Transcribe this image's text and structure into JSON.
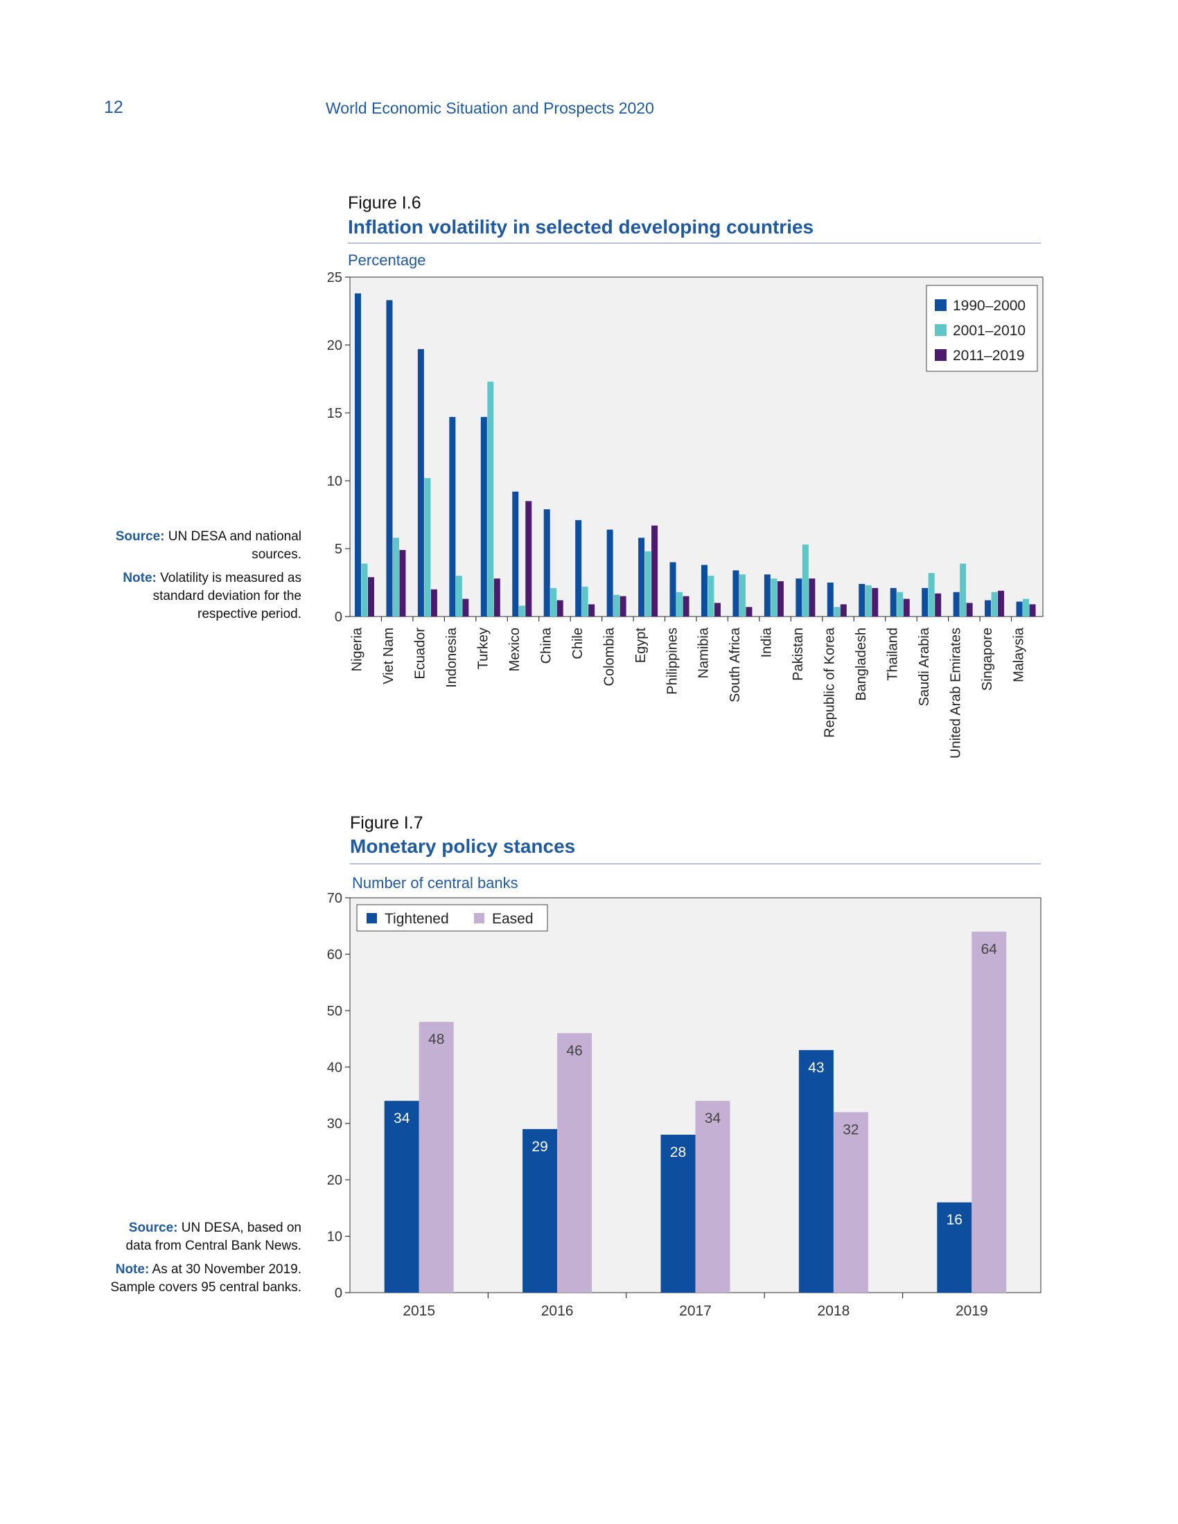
{
  "header": {
    "page_number": "12",
    "running_title": "World Economic Situation and Prospects 2020"
  },
  "figure_6": {
    "label": "Figure I.6",
    "title": "Inflation volatility in selected developing countries",
    "unit": "Percentage",
    "source_label": "Source:",
    "source_text": "UN DESA and national sources.",
    "note_label": "Note:",
    "note_text": "Volatility is measured as standard deviation for the respective period."
  },
  "figure_7": {
    "label": "Figure I.7",
    "title": "Monetary policy stances",
    "unit": "Number of central banks",
    "source_label": "Source:",
    "source_text": "UN DESA, based on data from Central Bank News.",
    "note_label": "Note:",
    "note_text": "As at 30 November 2019. Sample covers 95 central banks."
  },
  "colors": {
    "s1": "#0d4f9e",
    "s2": "#5ec6c6",
    "s3": "#4b1c6e",
    "tightened": "#0d4f9e",
    "eased": "#c4b0d3",
    "plot_bg": "#f1f1f1"
  },
  "chart_data": [
    {
      "type": "bar",
      "title": "Inflation volatility in selected developing countries",
      "ylabel": "Percentage",
      "ylim": [
        0,
        25
      ],
      "yticks": [
        0,
        5,
        10,
        15,
        20,
        25
      ],
      "grid": false,
      "legend": "top-right",
      "categories": [
        "Nigeria",
        "Viet Nam",
        "Ecuador",
        "Indonesia",
        "Turkey",
        "Mexico",
        "China",
        "Chile",
        "Colombia",
        "Egypt",
        "Philippines",
        "Namibia",
        "South Africa",
        "India",
        "Pakistan",
        "Republic of Korea",
        "Bangladesh",
        "Thailand",
        "Saudi Arabia",
        "United Arab Emirates",
        "Singapore",
        "Malaysia"
      ],
      "series": [
        {
          "name": "1990–2000",
          "values": [
            23.8,
            23.3,
            19.7,
            14.7,
            14.7,
            9.2,
            7.9,
            7.1,
            6.4,
            5.8,
            4.0,
            3.8,
            3.4,
            3.1,
            2.8,
            2.5,
            2.4,
            2.1,
            2.1,
            1.8,
            1.2,
            1.1
          ]
        },
        {
          "name": "2001–2010",
          "values": [
            3.9,
            5.8,
            10.2,
            3.0,
            17.3,
            0.8,
            2.1,
            2.2,
            1.6,
            4.8,
            1.8,
            3.0,
            3.1,
            2.8,
            5.3,
            0.7,
            2.3,
            1.8,
            3.2,
            3.9,
            1.8,
            1.3
          ]
        },
        {
          "name": "2011–2019",
          "values": [
            2.9,
            4.9,
            2.0,
            1.3,
            2.8,
            8.5,
            1.2,
            0.9,
            1.5,
            6.7,
            1.5,
            1.0,
            0.7,
            2.6,
            2.8,
            0.9,
            2.1,
            1.3,
            1.7,
            1.0,
            1.9,
            0.9
          ]
        }
      ]
    },
    {
      "type": "bar",
      "title": "Monetary policy stances",
      "ylabel": "Number of central banks",
      "ylim": [
        0,
        70
      ],
      "yticks": [
        0,
        10,
        20,
        30,
        40,
        50,
        60,
        70
      ],
      "grid": false,
      "legend": "top-left",
      "categories": [
        "2015",
        "2016",
        "2017",
        "2018",
        "2019"
      ],
      "series": [
        {
          "name": "Tightened",
          "values": [
            34,
            29,
            28,
            43,
            16
          ]
        },
        {
          "name": "Eased",
          "values": [
            48,
            46,
            34,
            32,
            64
          ]
        }
      ]
    }
  ]
}
